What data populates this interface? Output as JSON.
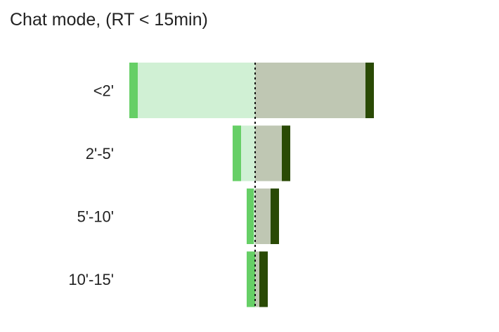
{
  "title": "Chat mode, (RT < 15min)",
  "chart_data": {
    "type": "bar",
    "orientation": "horizontal",
    "layout": "diverging-stacked",
    "title": "Chat mode, (RT < 15min)",
    "categories": [
      "<2'",
      "2'-5'",
      "5'-10'",
      "10'-15'"
    ],
    "series": [
      {
        "side": "left-outer",
        "color": "#66cf66",
        "values": [
          12,
          12,
          10,
          12
        ]
      },
      {
        "side": "left-inner",
        "color": "#d0f0d4",
        "values": [
          167,
          20,
          2,
          0
        ]
      },
      {
        "side": "right-inner",
        "color": "#bfc7b3",
        "values": [
          157,
          38,
          22,
          6
        ]
      },
      {
        "side": "right-outer",
        "color": "#2a4a05",
        "values": [
          12,
          12,
          12,
          12
        ]
      }
    ],
    "xlim": [
      -180,
      170
    ],
    "center_line": "dotted",
    "grid": false,
    "legend": "none"
  }
}
